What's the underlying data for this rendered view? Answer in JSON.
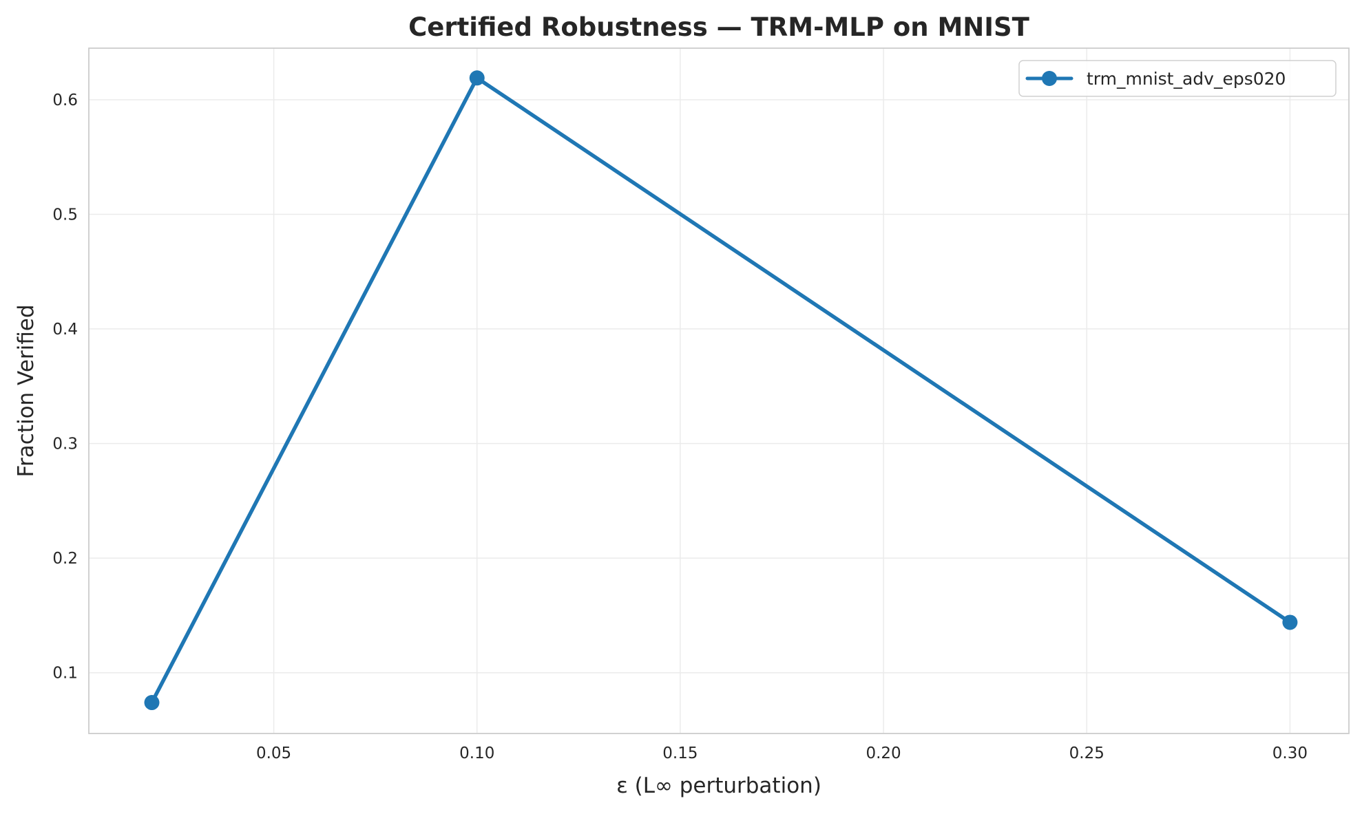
{
  "chart_data": {
    "type": "line",
    "title": "Certified Robustness — TRM-MLP on MNIST",
    "xlabel": "ε (L∞ perturbation)",
    "ylabel": "Fraction Verified",
    "xlim": [
      0.0045,
      0.3145
    ],
    "ylim": [
      0.047,
      0.645
    ],
    "xticks": [
      0.05,
      0.1,
      0.15,
      0.2,
      0.25,
      0.3
    ],
    "xtick_labels": [
      "0.05",
      "0.10",
      "0.15",
      "0.20",
      "0.25",
      "0.30"
    ],
    "yticks": [
      0.1,
      0.2,
      0.3,
      0.4,
      0.5,
      0.6
    ],
    "ytick_labels": [
      "0.1",
      "0.2",
      "0.3",
      "0.4",
      "0.5",
      "0.6"
    ],
    "grid": true,
    "legend_position": "top-right",
    "series": [
      {
        "name": "trm_mnist_adv_eps020",
        "color": "#1f77b4",
        "marker": "circle",
        "x": [
          0.02,
          0.1,
          0.3
        ],
        "y": [
          0.074,
          0.619,
          0.144
        ]
      }
    ]
  }
}
